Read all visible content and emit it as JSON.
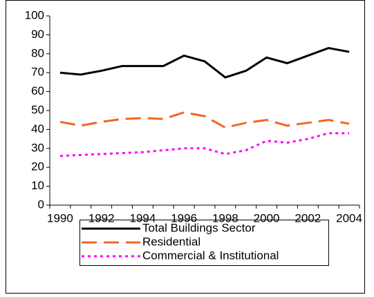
{
  "chart_data": {
    "type": "line",
    "categories": [
      "1990",
      null,
      "1992",
      null,
      "1994",
      null,
      "1996",
      null,
      "1998",
      null,
      "2000",
      null,
      "2002",
      null,
      "2004"
    ],
    "series": [
      {
        "name": "Total Buildings Sector",
        "color": "#000000",
        "dash": "solid",
        "values": [
          70,
          69,
          71,
          73.5,
          73.5,
          73.5,
          79,
          76,
          67.5,
          71,
          78,
          75,
          79,
          83,
          81
        ]
      },
      {
        "name": "Residential",
        "color": "#f26522",
        "dash": "long",
        "values": [
          44,
          42,
          44,
          45.5,
          46,
          45.5,
          49,
          47,
          41,
          43.5,
          45,
          42,
          43.5,
          45,
          43
        ]
      },
      {
        "name": "Commercial & Institutional",
        "color": "#ff00ff",
        "dash": "dot",
        "values": [
          26,
          26.5,
          27,
          27.5,
          28,
          29,
          30,
          30,
          27,
          29,
          34,
          33,
          35,
          38,
          38
        ]
      }
    ],
    "ylim": [
      0,
      100
    ],
    "yticks": [
      0,
      10,
      20,
      30,
      40,
      50,
      60,
      70,
      80,
      90,
      100
    ],
    "grid": false,
    "legend": "bottom"
  }
}
